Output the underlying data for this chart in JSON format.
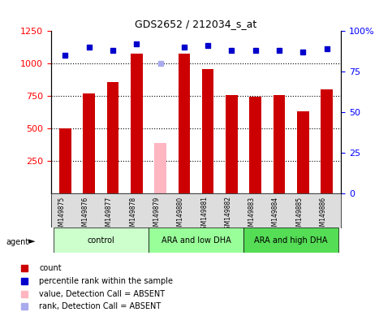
{
  "title": "GDS2652 / 212034_s_at",
  "samples": [
    "GSM149875",
    "GSM149876",
    "GSM149877",
    "GSM149878",
    "GSM149879",
    "GSM149880",
    "GSM149881",
    "GSM149882",
    "GSM149883",
    "GSM149884",
    "GSM149885",
    "GSM149886"
  ],
  "bar_values": [
    500,
    770,
    860,
    1080,
    null,
    1075,
    960,
    760,
    745,
    760,
    630,
    800
  ],
  "absent_bar_value": 390,
  "absent_bar_index": 4,
  "percentile_values": [
    85,
    90,
    88,
    92,
    null,
    90,
    91,
    88,
    88,
    88,
    87,
    89
  ],
  "absent_rank_value": 80,
  "absent_rank_index": 4,
  "bar_color": "#CC0000",
  "absent_bar_color": "#FFB6C1",
  "dot_color": "#0000CC",
  "absent_dot_color": "#AAAAEE",
  "ylim_left": [
    0,
    1250
  ],
  "ylim_right": [
    0,
    100
  ],
  "yticks_left": [
    250,
    500,
    750,
    1000,
    1250
  ],
  "yticks_right": [
    0,
    25,
    50,
    75,
    100
  ],
  "groups": [
    {
      "label": "control",
      "start": 0,
      "end": 4,
      "color": "#CCFFCC"
    },
    {
      "label": "ARA and low DHA",
      "start": 4,
      "end": 8,
      "color": "#99FF99"
    },
    {
      "label": "ARA and high DHA",
      "start": 8,
      "end": 12,
      "color": "#55DD55"
    }
  ],
  "agent_label": "agent",
  "legend_items": [
    {
      "color": "#CC0000",
      "label": "count"
    },
    {
      "color": "#0000CC",
      "label": "percentile rank within the sample"
    },
    {
      "color": "#FFB6C1",
      "label": "value, Detection Call = ABSENT"
    },
    {
      "color": "#AAAAEE",
      "label": "rank, Detection Call = ABSENT"
    }
  ],
  "background_color": "#FFFFFF",
  "plot_bg_color": "#FFFFFF",
  "tick_area_color": "#DDDDDD"
}
